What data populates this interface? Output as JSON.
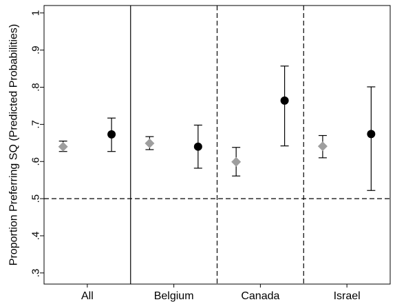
{
  "chart_data": {
    "type": "scatter",
    "ylabel": "Proportion Preferring SQ (Predicted Probabilities)",
    "ylim": [
      0.27,
      1.02
    ],
    "yticks": [
      {
        "value": 0.3,
        "label": ".3"
      },
      {
        "value": 0.4,
        "label": ".4"
      },
      {
        "value": 0.5,
        "label": ".5"
      },
      {
        "value": 0.6,
        "label": ".6"
      },
      {
        "value": 0.7,
        "label": ".7"
      },
      {
        "value": 0.8,
        "label": ".8"
      },
      {
        "value": 0.9,
        "label": ".9"
      },
      {
        "value": 1.0,
        "label": "1"
      }
    ],
    "categories": [
      "All",
      "Belgium",
      "Canada",
      "Israel"
    ],
    "series": [
      {
        "marker": "diamond",
        "color": "#9e9e9e",
        "values": [
          0.64,
          0.649,
          0.599,
          0.641
        ],
        "ci_low": [
          0.627,
          0.632,
          0.561,
          0.61
        ],
        "ci_high": [
          0.655,
          0.667,
          0.638,
          0.67
        ]
      },
      {
        "marker": "circle",
        "color": "#000000",
        "values": [
          0.673,
          0.64,
          0.764,
          0.674
        ],
        "ci_low": [
          0.627,
          0.582,
          0.642,
          0.522
        ],
        "ci_high": [
          0.717,
          0.698,
          0.857,
          0.801
        ]
      }
    ],
    "reference_line": 0.5,
    "panel_separators": [
      "solid",
      "dashed",
      "dashed"
    ],
    "grid": false
  }
}
